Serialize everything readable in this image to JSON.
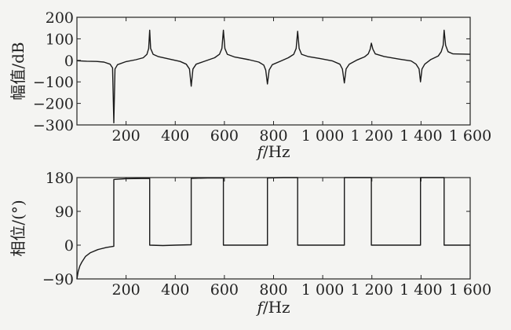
{
  "chart_data": [
    {
      "type": "line",
      "xlabel_italic": "f",
      "xlabel_unit": "/Hz",
      "ylabel": "幅值/dB",
      "xlim": [
        0,
        1600
      ],
      "ylim": [
        -300,
        200
      ],
      "xticks": [
        200,
        400,
        600,
        800,
        1000,
        1200,
        1400,
        1600
      ],
      "xtick_labels": [
        "200",
        "400",
        "600",
        "800",
        "1 000",
        "1 200",
        "1 400",
        "1 600"
      ],
      "yticks": [
        200,
        100,
        0,
        -100,
        -200,
        -300
      ],
      "ytick_labels": [
        "200",
        "100",
        "0",
        "−100",
        "−200",
        "−300"
      ],
      "grid": false,
      "series": [
        {
          "points": [
            [
              0,
              -2
            ],
            [
              40,
              -4
            ],
            [
              80,
              -5
            ],
            [
              110,
              -8
            ],
            [
              135,
              -18
            ],
            [
              145,
              -35
            ],
            [
              150,
              -290
            ],
            [
              155,
              -40
            ],
            [
              165,
              -20
            ],
            [
              200,
              -6
            ],
            [
              240,
              3
            ],
            [
              270,
              12
            ],
            [
              285,
              28
            ],
            [
              292,
              55
            ],
            [
              296,
              140
            ],
            [
              300,
              55
            ],
            [
              310,
              28
            ],
            [
              330,
              18
            ],
            [
              380,
              5
            ],
            [
              420,
              -5
            ],
            [
              445,
              -18
            ],
            [
              458,
              -40
            ],
            [
              465,
              -120
            ],
            [
              472,
              -40
            ],
            [
              485,
              -18
            ],
            [
              520,
              -4
            ],
            [
              560,
              12
            ],
            [
              580,
              28
            ],
            [
              590,
              55
            ],
            [
              596,
              140
            ],
            [
              602,
              55
            ],
            [
              612,
              28
            ],
            [
              640,
              16
            ],
            [
              700,
              3
            ],
            [
              740,
              -8
            ],
            [
              760,
              -22
            ],
            [
              768,
              -45
            ],
            [
              775,
              -110
            ],
            [
              782,
              -45
            ],
            [
              795,
              -20
            ],
            [
              830,
              -3
            ],
            [
              860,
              12
            ],
            [
              882,
              28
            ],
            [
              892,
              55
            ],
            [
              898,
              135
            ],
            [
              904,
              55
            ],
            [
              914,
              28
            ],
            [
              940,
              18
            ],
            [
              990,
              8
            ],
            [
              1040,
              -3
            ],
            [
              1070,
              -18
            ],
            [
              1080,
              -40
            ],
            [
              1088,
              -105
            ],
            [
              1095,
              -40
            ],
            [
              1108,
              -18
            ],
            [
              1140,
              2
            ],
            [
              1170,
              16
            ],
            [
              1185,
              30
            ],
            [
              1193,
              52
            ],
            [
              1198,
              80
            ],
            [
              1204,
              52
            ],
            [
              1214,
              30
            ],
            [
              1250,
              18
            ],
            [
              1310,
              6
            ],
            [
              1360,
              -3
            ],
            [
              1380,
              -18
            ],
            [
              1392,
              -40
            ],
            [
              1398,
              -100
            ],
            [
              1404,
              -40
            ],
            [
              1415,
              -18
            ],
            [
              1440,
              4
            ],
            [
              1470,
              20
            ],
            [
              1482,
              40
            ],
            [
              1490,
              70
            ],
            [
              1494,
              140
            ],
            [
              1500,
              70
            ],
            [
              1510,
              40
            ],
            [
              1530,
              30
            ],
            [
              1600,
              28
            ]
          ]
        }
      ]
    },
    {
      "type": "line",
      "xlabel_italic": "f",
      "xlabel_unit": "/Hz",
      "ylabel": "相位/(°)",
      "xlim": [
        0,
        1600
      ],
      "ylim": [
        -90,
        180
      ],
      "xticks": [
        200,
        400,
        600,
        800,
        1000,
        1200,
        1400,
        1600
      ],
      "xtick_labels": [
        "200",
        "400",
        "600",
        "800",
        "1 000",
        "1 200",
        "1 400",
        "1 600"
      ],
      "yticks": [
        180,
        90,
        0,
        -90
      ],
      "ytick_labels": [
        "180",
        "90",
        "0",
        "−90"
      ],
      "grid": false,
      "series": [
        {
          "points": [
            [
              0,
              -90
            ],
            [
              5,
              -70
            ],
            [
              12,
              -55
            ],
            [
              20,
              -45
            ],
            [
              35,
              -30
            ],
            [
              55,
              -20
            ],
            [
              85,
              -12
            ],
            [
              120,
              -6
            ],
            [
              150,
              -3
            ],
            [
              150,
              175
            ],
            [
              200,
              177
            ],
            [
              296,
              178
            ],
            [
              296,
              0
            ],
            [
              350,
              -1
            ],
            [
              400,
              0
            ],
            [
              465,
              1
            ],
            [
              465,
              178
            ],
            [
              530,
              179
            ],
            [
              596,
              179
            ],
            [
              596,
              0
            ],
            [
              700,
              0
            ],
            [
              775,
              0
            ],
            [
              775,
              179
            ],
            [
              840,
              180
            ],
            [
              898,
              180
            ],
            [
              898,
              0
            ],
            [
              1000,
              0
            ],
            [
              1088,
              0
            ],
            [
              1088,
              180
            ],
            [
              1150,
              180
            ],
            [
              1198,
              180
            ],
            [
              1198,
              0
            ],
            [
              1300,
              0
            ],
            [
              1398,
              0
            ],
            [
              1398,
              180
            ],
            [
              1450,
              180
            ],
            [
              1494,
              180
            ],
            [
              1494,
              0
            ],
            [
              1550,
              0
            ],
            [
              1600,
              0
            ]
          ]
        }
      ]
    }
  ]
}
